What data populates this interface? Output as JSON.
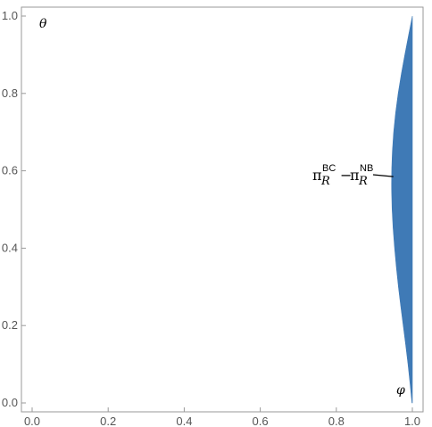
{
  "chart_data": {
    "type": "area",
    "x_var": "φ",
    "y_var": "θ",
    "xlim": [
      0,
      1
    ],
    "ylim": [
      0,
      1
    ],
    "x_ticks": [
      "0.0",
      "0.2",
      "0.4",
      "0.6",
      "0.8",
      "1.0"
    ],
    "y_ticks": [
      "0.0",
      "0.2",
      "0.4",
      "0.6",
      "0.8",
      "1.0"
    ],
    "frame": true,
    "grid": false,
    "fill_color": "#3f7ab6",
    "region": {
      "description_points_boundary_left": [
        {
          "x": 0.999,
          "y": 0.0
        },
        {
          "x": 0.989,
          "y": 0.1
        },
        {
          "x": 0.976,
          "y": 0.2
        },
        {
          "x": 0.963,
          "y": 0.3
        },
        {
          "x": 0.953,
          "y": 0.4
        },
        {
          "x": 0.946,
          "y": 0.5
        },
        {
          "x": 0.945,
          "y": 0.6
        },
        {
          "x": 0.95,
          "y": 0.7
        },
        {
          "x": 0.962,
          "y": 0.8
        },
        {
          "x": 0.98,
          "y": 0.9
        },
        {
          "x": 1.0,
          "y": 1.0
        }
      ],
      "right_boundary_x": 1.0
    },
    "annotation": {
      "base": "π",
      "left_sup": "BC",
      "left_sub": "R",
      "operator": "−",
      "right_sup": "NB",
      "right_sub": "R",
      "pointer_target": {
        "x": 0.95,
        "y": 0.585
      }
    }
  }
}
